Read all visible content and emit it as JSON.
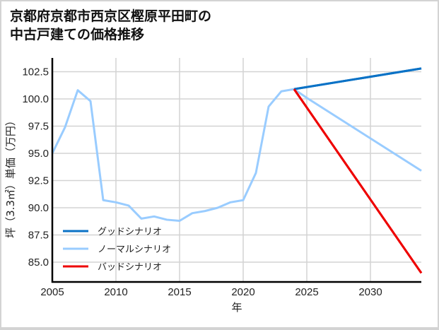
{
  "title_line1": "京都府京都市西京区樫原平田町の",
  "title_line2": "中古戸建ての価格推移",
  "chart_data": {
    "type": "line",
    "title": "京都府京都市西京区樫原平田町の中古戸建ての価格推移",
    "xlabel": "年",
    "ylabel": "坪（3.3㎡）単価（万円）",
    "xlim": [
      2005,
      2034
    ],
    "ylim": [
      83.2,
      103.4
    ],
    "xticks": [
      2005,
      2010,
      2015,
      2020,
      2025,
      2030
    ],
    "yticks": [
      85.0,
      87.5,
      90.0,
      92.5,
      95.0,
      97.5,
      100.0,
      102.5
    ],
    "ytick_labels": [
      "85.0",
      "87.5",
      "90.0",
      "92.5",
      "95.0",
      "97.5",
      "100.0",
      "102.5"
    ],
    "grid": true,
    "legend_position": "lower left",
    "series": [
      {
        "name": "グッドシナリオ",
        "color": "#0a72c6",
        "x": [
          2024,
          2034
        ],
        "values": [
          100.9,
          102.8
        ]
      },
      {
        "name": "ノーマルシナリオ",
        "color": "#99ccff",
        "x": [
          2005,
          2006,
          2007,
          2008,
          2009,
          2010,
          2011,
          2012,
          2013,
          2014,
          2015,
          2016,
          2017,
          2018,
          2019,
          2020,
          2021,
          2022,
          2023,
          2024,
          2025,
          2034
        ],
        "values": [
          95.0,
          97.4,
          100.8,
          99.8,
          90.7,
          90.5,
          90.2,
          89.0,
          89.2,
          88.9,
          88.8,
          89.5,
          89.7,
          90.0,
          90.5,
          90.7,
          93.2,
          99.3,
          100.7,
          100.9,
          100.1,
          93.4
        ]
      },
      {
        "name": "バッドシナリオ",
        "color": "#ee0000",
        "x": [
          2024,
          2034
        ],
        "values": [
          100.9,
          84.0
        ]
      }
    ]
  }
}
